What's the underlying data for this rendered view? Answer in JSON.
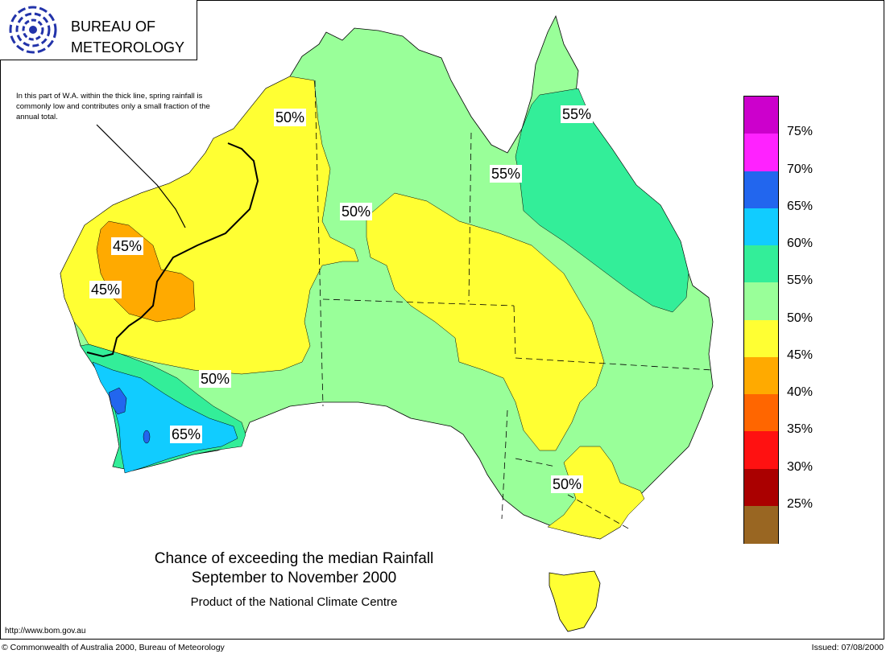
{
  "header": {
    "org_name": "BUREAU OF\nMETEOROLOGY",
    "logo_icon": "bom-swirl-logo-icon"
  },
  "note": "In this part of W.A. within the thick line, spring rainfall is commonly low and contributes only a small fraction of the annual total.",
  "map_labels": [
    "50%",
    "55%",
    "55%",
    "50%",
    "45%",
    "45%",
    "50%",
    "65%",
    "50%"
  ],
  "legend": {
    "items": [
      {
        "label": "75%",
        "color": "#cc00cc"
      },
      {
        "label": "70%",
        "color": "#ff22ff"
      },
      {
        "label": "65%",
        "color": "#2266ee"
      },
      {
        "label": "60%",
        "color": "#11ccff"
      },
      {
        "label": "55%",
        "color": "#33ee99"
      },
      {
        "label": "50%",
        "color": "#99ff99"
      },
      {
        "label": "45%",
        "color": "#ffff33"
      },
      {
        "label": "40%",
        "color": "#ffaa00"
      },
      {
        "label": "35%",
        "color": "#ff6600"
      },
      {
        "label": "30%",
        "color": "#ff1111"
      },
      {
        "label": "25%",
        "color": "#aa0000"
      },
      {
        "label": "",
        "color": "#996622"
      }
    ]
  },
  "title": {
    "line1": "Chance of exceeding the median Rainfall",
    "line2": "September to November 2000",
    "line3": "Product of the National Climate Centre"
  },
  "footer": {
    "url": "http://www.bom.gov.au",
    "copyright": "© Commonwealth of Australia 2000, Bureau of Meteorology",
    "issued": "Issued: 07/08/2000"
  }
}
